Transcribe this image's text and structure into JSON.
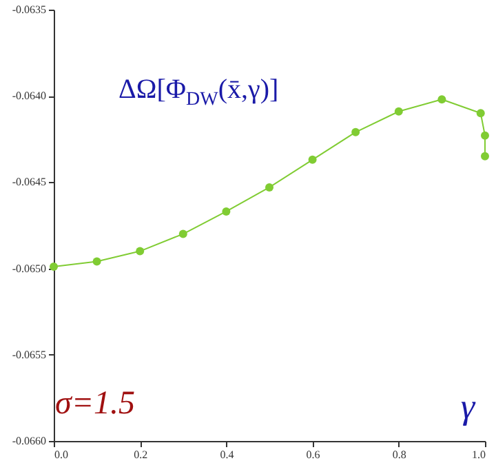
{
  "chart_data": {
    "type": "line",
    "xlabel": "γ",
    "ylabel": "ΔΩ[Φ$_{DW}$(x̄,γ)]",
    "annotations": [
      "σ=1.5"
    ],
    "x": [
      0,
      0.1,
      0.2,
      0.3,
      0.4,
      0.5,
      0.6,
      0.7,
      0.8,
      0.9,
      0.99,
      1.0,
      1.0
    ],
    "series": [
      {
        "color": "#80cc33",
        "values": [
          -0.06499,
          -0.06496,
          -0.0649,
          -0.0648,
          -0.06467,
          -0.06453,
          -0.06437,
          -0.06421,
          -0.06409,
          -0.06402,
          -0.0641,
          -0.06423,
          -0.06435
        ]
      }
    ],
    "xlim": [
      0,
      1
    ],
    "xticks": [
      {
        "value": 0,
        "label": "0.0"
      },
      0.2,
      0.4,
      0.6,
      0.8,
      {
        "value": 1,
        "label": "1.0"
      }
    ],
    "ylim": [
      -0.066,
      -0.0635
    ],
    "yticks": [
      {
        "value": -0.066,
        "label": "-0.0660"
      },
      -0.0655,
      {
        "value": -0.065,
        "label": "-0.0650"
      },
      -0.0645,
      {
        "value": -0.064,
        "label": "-0.0640"
      },
      -0.0635
    ],
    "marker": "circle",
    "grid": false
  }
}
